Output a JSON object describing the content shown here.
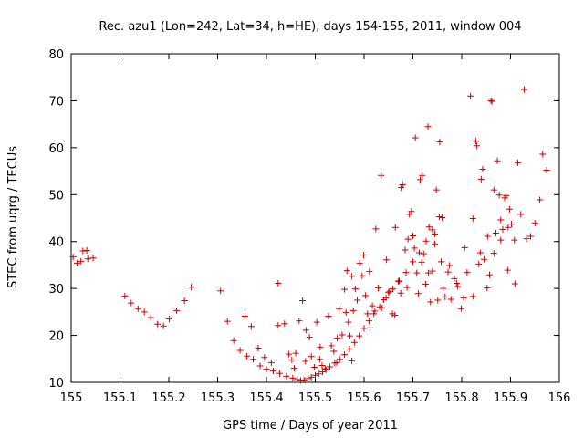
{
  "chart_data": {
    "type": "scatter",
    "title": "Rec. azu1 (Lon=242, Lat=34, h=HE), days 154-155, 2011, window 004",
    "xlabel": "GPS time / Days of year 2011",
    "ylabel": "STEC from uqrg / TECUs",
    "xlim": [
      155,
      156
    ],
    "ylim": [
      10,
      80
    ],
    "x_ticks": [
      "155",
      "155.1",
      "155.2",
      "155.3",
      "155.4",
      "155.5",
      "155.6",
      "155.7",
      "155.8",
      "155.9",
      "156"
    ],
    "y_ticks": [
      "10",
      "20",
      "30",
      "40",
      "50",
      "60",
      "70",
      "80"
    ],
    "grid": false,
    "legend": "none",
    "marker": "plus",
    "color": "#cc0000",
    "points": [
      [
        155.004,
        36.7
      ],
      [
        155.012,
        35.4
      ],
      [
        155.02,
        35.8
      ],
      [
        155.024,
        38.0
      ],
      [
        155.032,
        38.1
      ],
      [
        155.034,
        36.3
      ],
      [
        155.045,
        36.5
      ],
      [
        155.11,
        28.4
      ],
      [
        155.123,
        26.9
      ],
      [
        155.137,
        25.7
      ],
      [
        155.15,
        25.0
      ],
      [
        155.163,
        23.8
      ],
      [
        155.177,
        22.4
      ],
      [
        155.189,
        22.0
      ],
      [
        155.201,
        23.5
      ],
      [
        155.216,
        25.3
      ],
      [
        155.232,
        27.4
      ],
      [
        155.246,
        30.3
      ],
      [
        155.306,
        29.5
      ],
      [
        155.32,
        23.0
      ],
      [
        155.333,
        18.9
      ],
      [
        155.346,
        16.8
      ],
      [
        155.36,
        15.6
      ],
      [
        155.373,
        14.9
      ],
      [
        155.387,
        13.5
      ],
      [
        155.4,
        12.8
      ],
      [
        155.414,
        12.4
      ],
      [
        155.427,
        11.9
      ],
      [
        155.441,
        11.3
      ],
      [
        155.454,
        10.9
      ],
      [
        155.463,
        10.6
      ],
      [
        155.47,
        10.4
      ],
      [
        155.477,
        10.5
      ],
      [
        155.485,
        10.8
      ],
      [
        155.492,
        11.1
      ],
      [
        155.5,
        11.5
      ],
      [
        155.507,
        11.8
      ],
      [
        155.515,
        12.2
      ],
      [
        155.522,
        12.7
      ],
      [
        155.53,
        13.3
      ],
      [
        155.54,
        14.1
      ],
      [
        155.55,
        14.9
      ],
      [
        155.56,
        15.9
      ],
      [
        155.57,
        17.1
      ],
      [
        155.58,
        18.5
      ],
      [
        155.59,
        19.9
      ],
      [
        155.6,
        21.5
      ],
      [
        155.61,
        23.1
      ],
      [
        155.62,
        24.6
      ],
      [
        155.632,
        26.1
      ],
      [
        155.645,
        28.0
      ],
      [
        155.659,
        29.9
      ],
      [
        155.672,
        31.6
      ],
      [
        155.686,
        33.4
      ],
      [
        155.7,
        35.7
      ],
      [
        155.713,
        37.6
      ],
      [
        155.727,
        40.1
      ],
      [
        155.74,
        42.5
      ],
      [
        155.754,
        45.3
      ],
      [
        155.356,
        24.1
      ],
      [
        155.369,
        21.9
      ],
      [
        155.383,
        17.3
      ],
      [
        155.396,
        15.3
      ],
      [
        155.41,
        14.2
      ],
      [
        155.424,
        22.1
      ],
      [
        155.437,
        22.5
      ],
      [
        155.446,
        16.0
      ],
      [
        155.452,
        14.8
      ],
      [
        155.457,
        13.0
      ],
      [
        155.467,
        23.1
      ],
      [
        155.474,
        27.4
      ],
      [
        155.481,
        21.1
      ],
      [
        155.488,
        19.6
      ],
      [
        155.492,
        15.5
      ],
      [
        155.498,
        13.2
      ],
      [
        155.503,
        22.8
      ],
      [
        155.509,
        14.9
      ],
      [
        155.514,
        13.6
      ],
      [
        155.52,
        12.9
      ],
      [
        155.527,
        24.1
      ],
      [
        155.533,
        17.8
      ],
      [
        155.538,
        16.6
      ],
      [
        155.544,
        14.2
      ],
      [
        155.549,
        25.7
      ],
      [
        155.555,
        20.1
      ],
      [
        155.56,
        29.8
      ],
      [
        155.563,
        24.9
      ],
      [
        155.565,
        33.8
      ],
      [
        155.568,
        22.8
      ],
      [
        155.571,
        19.9
      ],
      [
        155.575,
        32.6
      ],
      [
        155.578,
        25.3
      ],
      [
        155.582,
        29.9
      ],
      [
        155.586,
        27.5
      ],
      [
        155.591,
        35.4
      ],
      [
        155.596,
        32.7
      ],
      [
        155.599,
        37.1
      ],
      [
        155.603,
        28.5
      ],
      [
        155.607,
        24.6
      ],
      [
        155.611,
        33.6
      ],
      [
        155.617,
        26.3
      ],
      [
        155.624,
        42.7
      ],
      [
        155.629,
        30.1
      ],
      [
        155.635,
        54.1
      ],
      [
        155.64,
        27.6
      ],
      [
        155.646,
        36.1
      ],
      [
        155.652,
        29.4
      ],
      [
        155.658,
        24.6
      ],
      [
        155.664,
        43.0
      ],
      [
        155.67,
        31.5
      ],
      [
        155.676,
        51.5
      ],
      [
        155.679,
        52.1
      ],
      [
        155.684,
        38.2
      ],
      [
        155.688,
        30.2
      ],
      [
        155.693,
        45.8
      ],
      [
        155.697,
        46.4
      ],
      [
        155.7,
        41.2
      ],
      [
        155.705,
        62.1
      ],
      [
        155.708,
        33.3
      ],
      [
        155.711,
        28.9
      ],
      [
        155.715,
        53.2
      ],
      [
        155.719,
        54.1
      ],
      [
        155.722,
        37.4
      ],
      [
        155.726,
        30.9
      ],
      [
        155.731,
        64.5
      ],
      [
        155.733,
        43.1
      ],
      [
        155.736,
        27.1
      ],
      [
        155.74,
        33.7
      ],
      [
        155.745,
        39.5
      ],
      [
        155.748,
        51.0
      ],
      [
        155.751,
        27.5
      ],
      [
        155.755,
        61.2
      ],
      [
        155.758,
        35.7
      ],
      [
        155.762,
        30.0
      ],
      [
        155.766,
        28.2
      ],
      [
        155.772,
        33.5
      ],
      [
        155.778,
        27.7
      ],
      [
        155.785,
        32.1
      ],
      [
        155.792,
        30.4
      ],
      [
        155.799,
        25.7
      ],
      [
        155.806,
        38.7
      ],
      [
        155.811,
        33.4
      ],
      [
        155.818,
        71.0
      ],
      [
        155.823,
        28.3
      ],
      [
        155.829,
        61.4
      ],
      [
        155.831,
        60.4
      ],
      [
        155.835,
        35.2
      ],
      [
        155.84,
        53.3
      ],
      [
        155.843,
        55.4
      ],
      [
        155.846,
        36.2
      ],
      [
        155.852,
        30.1
      ],
      [
        155.857,
        32.9
      ],
      [
        155.86,
        70.0
      ],
      [
        155.862,
        69.9
      ],
      [
        155.866,
        51.0
      ],
      [
        155.87,
        41.8
      ],
      [
        155.873,
        57.2
      ],
      [
        155.877,
        49.9
      ],
      [
        155.88,
        44.6
      ],
      [
        155.884,
        42.6
      ],
      [
        155.888,
        49.3
      ],
      [
        155.891,
        49.8
      ],
      [
        155.895,
        43.0
      ],
      [
        155.898,
        46.9
      ],
      [
        155.902,
        43.7
      ],
      [
        155.908,
        40.3
      ],
      [
        155.915,
        56.8
      ],
      [
        155.921,
        45.8
      ],
      [
        155.928,
        72.4
      ],
      [
        155.933,
        40.6
      ],
      [
        155.941,
        41.1
      ],
      [
        155.95,
        43.9
      ],
      [
        155.96,
        48.9
      ],
      [
        155.966,
        58.6
      ],
      [
        155.974,
        55.2
      ],
      [
        155.622,
        25.2
      ],
      [
        155.637,
        25.9
      ],
      [
        155.65,
        29.1
      ],
      [
        155.663,
        24.3
      ],
      [
        155.675,
        29.0
      ],
      [
        155.69,
        40.5
      ],
      [
        155.703,
        38.6
      ],
      [
        155.718,
        35.6
      ],
      [
        155.732,
        33.3
      ],
      [
        155.745,
        41.6
      ],
      [
        155.76,
        45.1
      ],
      [
        155.775,
        34.9
      ],
      [
        155.79,
        31.1
      ],
      [
        155.804,
        28.0
      ],
      [
        155.823,
        44.9
      ],
      [
        155.838,
        37.6
      ],
      [
        155.853,
        41.1
      ],
      [
        155.866,
        37.5
      ],
      [
        155.88,
        40.3
      ],
      [
        155.894,
        33.9
      ],
      [
        155.909,
        31.0
      ],
      [
        155.424,
        31.1
      ],
      [
        155.46,
        16.2
      ],
      [
        155.48,
        14.5
      ],
      [
        155.51,
        17.5
      ],
      [
        155.545,
        19.4
      ],
      [
        155.575,
        14.6
      ],
      [
        155.612,
        21.6
      ]
    ]
  }
}
